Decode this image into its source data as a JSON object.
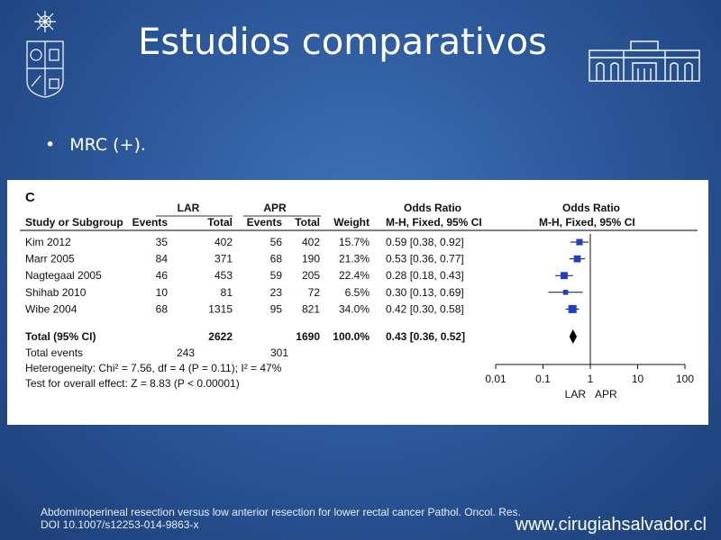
{
  "slide": {
    "title": "Estudios comparativos",
    "bullet": "MRC (+).",
    "citation_line1": "Abdominoperineal resection versus low anterior resection for lower rectal cancer Pathol. Oncol. Res.",
    "citation_line2": "DOI 10.1007/s12253-014-9863-x",
    "website": "www.cirugiahsalvador.cl"
  },
  "colors": {
    "marker": "#1f3fc4",
    "diamond": "#000000",
    "panel_bg": "#ffffff"
  },
  "icons": {
    "left_logo": "university-seal-icon",
    "right_logo": "university-building-icon"
  },
  "chart_data": {
    "type": "forest",
    "panel_label": "C",
    "group_headers": [
      "LAR",
      "APR",
      "Odds Ratio",
      "Odds Ratio"
    ],
    "column_headers": [
      "Study or Subgroup",
      "Events",
      "Total",
      "Events",
      "Total",
      "Weight",
      "M-H, Fixed, 95% CI",
      "M-H, Fixed, 95% CI"
    ],
    "studies": [
      {
        "name": "Kim 2012",
        "lar_events": "35",
        "lar_total": "402",
        "apr_events": "56",
        "apr_total": "402",
        "weight": "15.7%",
        "ci_text": "0.59 [0.38, 0.92]",
        "or": 0.59,
        "lo": 0.38,
        "hi": 0.92,
        "w": 15.7
      },
      {
        "name": "Marr 2005",
        "lar_events": "84",
        "lar_total": "371",
        "apr_events": "68",
        "apr_total": "190",
        "weight": "21.3%",
        "ci_text": "0.53 [0.36, 0.77]",
        "or": 0.53,
        "lo": 0.36,
        "hi": 0.77,
        "w": 21.3
      },
      {
        "name": "Nagtegaal 2005",
        "lar_events": "46",
        "lar_total": "453",
        "apr_events": "59",
        "apr_total": "205",
        "weight": "22.4%",
        "ci_text": "0.28 [0.18, 0.43]",
        "or": 0.28,
        "lo": 0.18,
        "hi": 0.43,
        "w": 22.4
      },
      {
        "name": "Shihab 2010",
        "lar_events": "10",
        "lar_total": "81",
        "apr_events": "23",
        "apr_total": "72",
        "weight": "6.5%",
        "ci_text": "0.30 [0.13, 0.69]",
        "or": 0.3,
        "lo": 0.13,
        "hi": 0.69,
        "w": 6.5
      },
      {
        "name": "Wibe 2004",
        "lar_events": "68",
        "lar_total": "1315",
        "apr_events": "95",
        "apr_total": "821",
        "weight": "34.0%",
        "ci_text": "0.42 [0.30, 0.58]",
        "or": 0.42,
        "lo": 0.3,
        "hi": 0.58,
        "w": 34.0
      }
    ],
    "total": {
      "name": "Total (95% CI)",
      "lar_total": "2622",
      "apr_total": "1690",
      "weight": "100.0%",
      "ci_text": "0.43 [0.36, 0.52]",
      "or": 0.43,
      "lo": 0.36,
      "hi": 0.52
    },
    "total_events": {
      "name": "Total events",
      "lar": "243",
      "apr": "301"
    },
    "heterogeneity": "Heterogeneity: Chi² = 7.56, df = 4 (P = 0.11); I² = 47%",
    "overall_effect": "Test for overall effect: Z = 8.83 (P < 0.00001)",
    "x_scale": "log",
    "xlim": [
      0.01,
      100
    ],
    "x_ticks": [
      0.01,
      0.1,
      1,
      10,
      100
    ],
    "x_tick_labels": [
      "0.01",
      "0.1",
      "1",
      "10",
      "100"
    ],
    "x_direction_labels": [
      "LAR",
      "APR"
    ]
  }
}
